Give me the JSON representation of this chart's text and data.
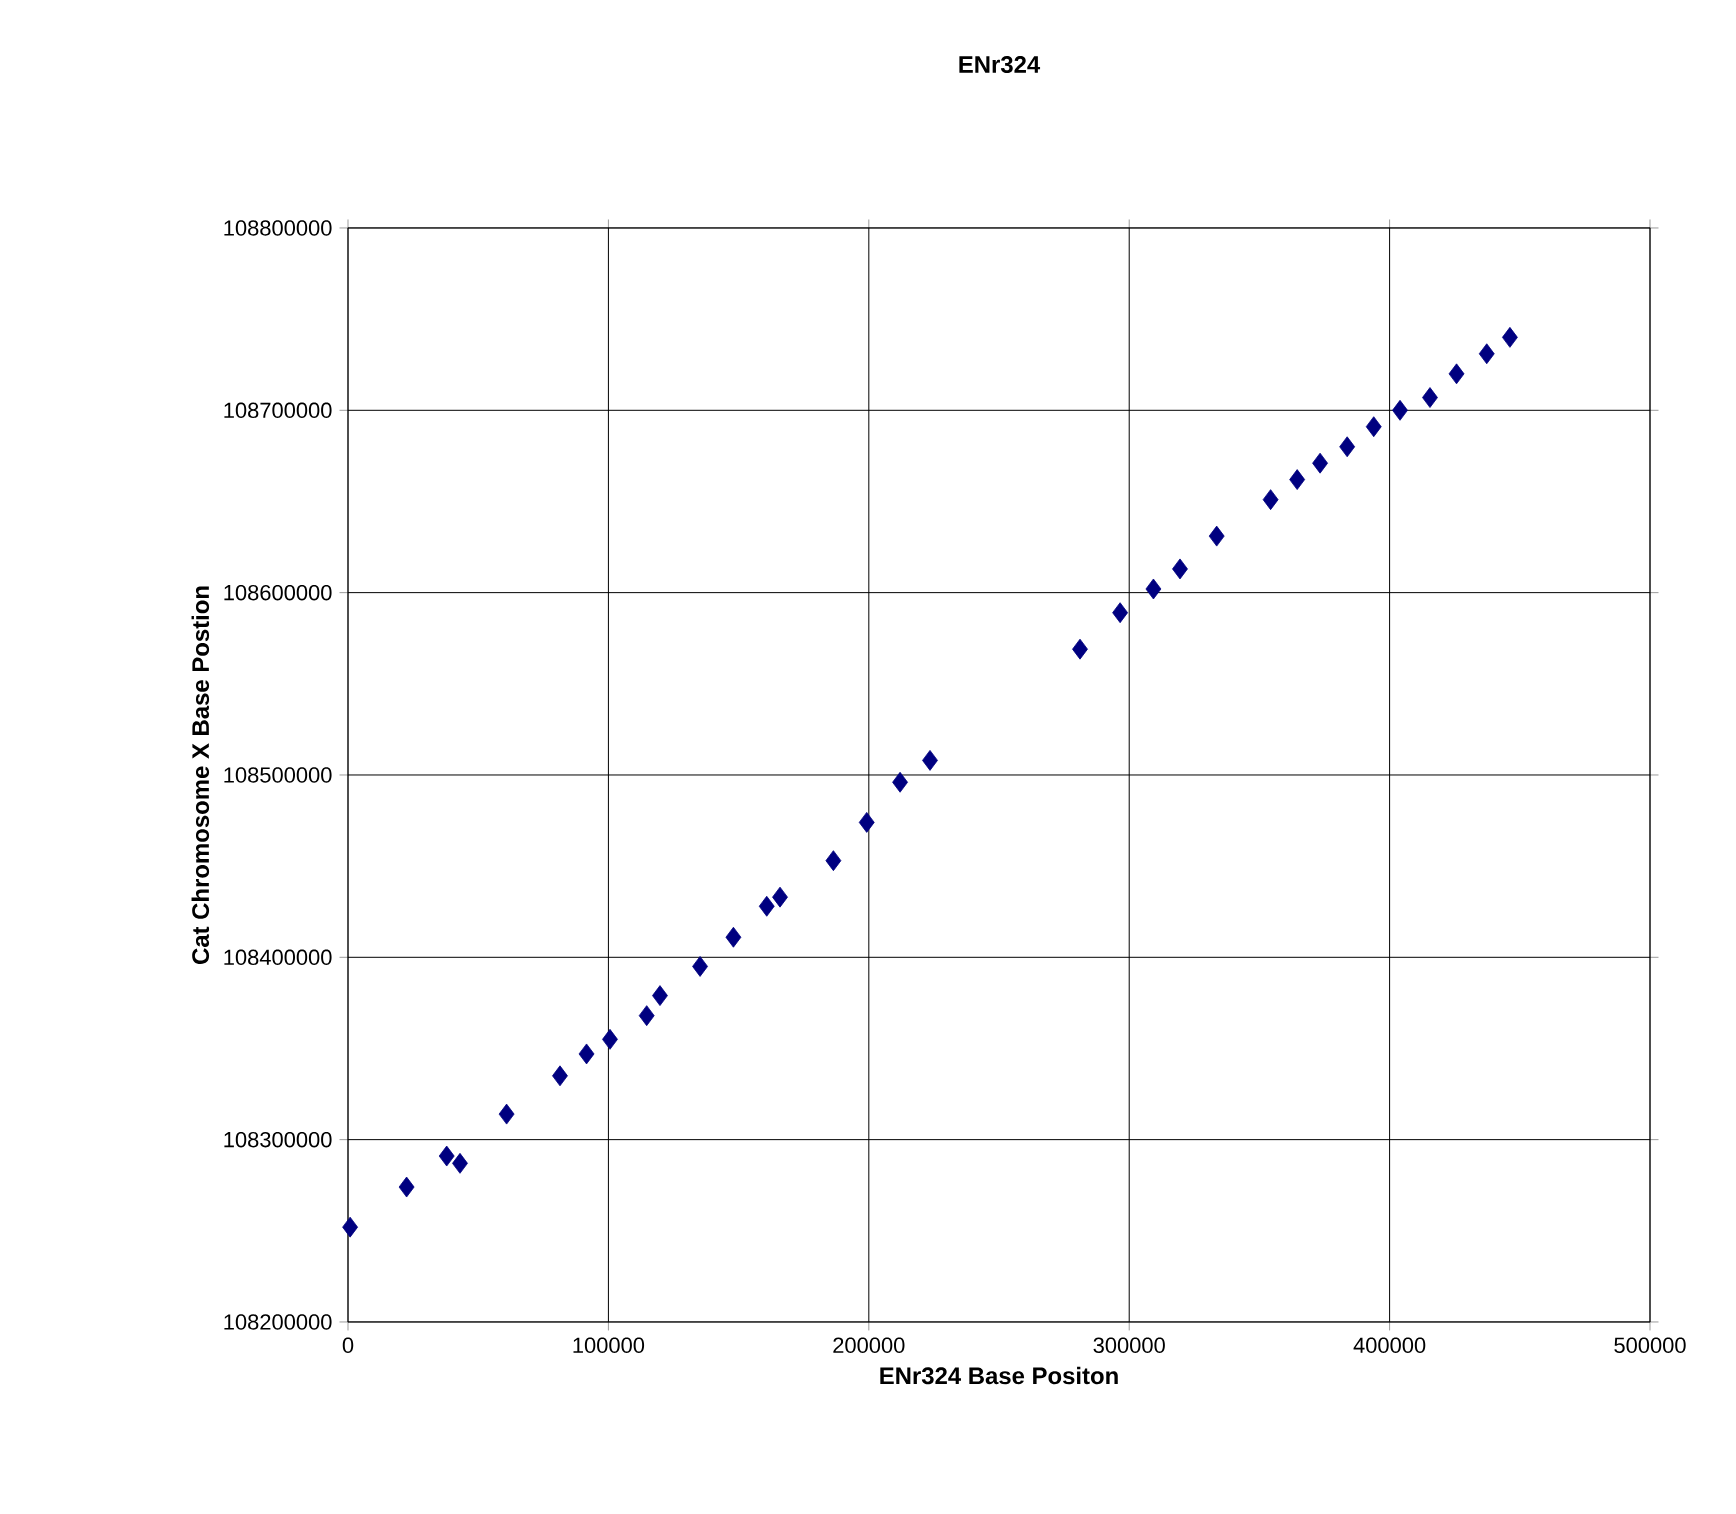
{
  "chart_data": {
    "type": "scatter",
    "title": "ENr324",
    "xlabel": "ENr324 Base Positon",
    "ylabel": "Cat Chromosome X Base Postion",
    "x": [
      800,
      22500,
      37900,
      43000,
      60900,
      81400,
      91600,
      100600,
      114700,
      119800,
      135200,
      148000,
      160800,
      165900,
      186400,
      199200,
      212000,
      223500,
      281100,
      296500,
      309300,
      319500,
      333600,
      354300,
      364500,
      373300,
      383700,
      393900,
      404000,
      415500,
      425700,
      437300,
      446200
    ],
    "values": [
      108252000,
      108274000,
      108291000,
      108287000,
      108314000,
      108335000,
      108347000,
      108355000,
      108368000,
      108379000,
      108395000,
      108411000,
      108428000,
      108433000,
      108453000,
      108474000,
      108496000,
      108508000,
      108569000,
      108589000,
      108602000,
      108613000,
      108631000,
      108651000,
      108662000,
      108671000,
      108680000,
      108691000,
      108700000,
      108707000,
      108720000,
      108731000,
      108740000
    ],
    "color": "#000080",
    "marker": "diamond",
    "grid": true,
    "xlim": [
      0,
      500000
    ],
    "ylim": [
      108200000,
      108800000
    ],
    "xticks": [
      0,
      100000,
      200000,
      300000,
      400000,
      500000
    ],
    "yticks": [
      108200000,
      108300000,
      108400000,
      108500000,
      108600000,
      108700000,
      108800000
    ]
  }
}
